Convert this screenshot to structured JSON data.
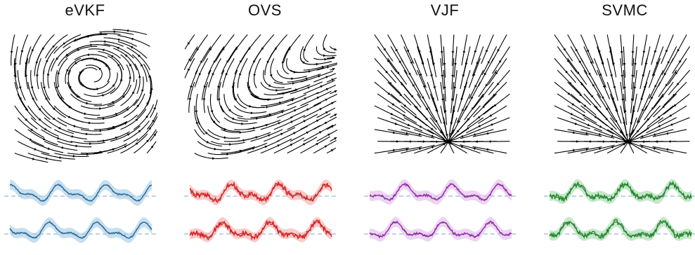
{
  "panels": [
    {
      "title": "eVKF",
      "field": "spiral",
      "color": "#2f6b95",
      "band": "#9ec9e8"
    },
    {
      "title": "OVS",
      "field": "saddle",
      "color": "#e11d1d",
      "band": "#f6a9a9"
    },
    {
      "title": "VJF",
      "field": "radial",
      "color": "#9b2fae",
      "band": "#e0b8ea"
    },
    {
      "title": "SVMC",
      "field": "radial",
      "color": "#1f8a2a",
      "band": "#9fd9a5"
    }
  ],
  "colors": {
    "reference_line": "#7aa7d6",
    "ground_truth": "#555555"
  }
}
